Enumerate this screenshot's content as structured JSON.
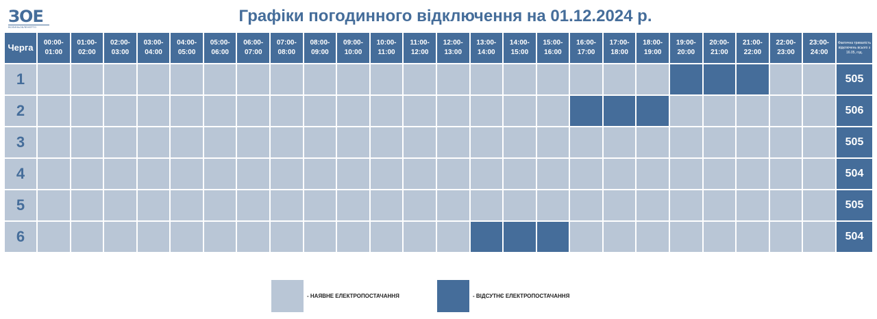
{
  "logo": {
    "mark": "ЗОЕ",
    "text": "ВОЛИНЬОБЛЕНЕРГО"
  },
  "title": "Графіки погодинного відключення на 01.12.2024 р.",
  "header": {
    "queue": "Черга",
    "total": "Фактична тривалість відключень всього з 16.05, год.",
    "hours": [
      "00:00-\n01:00",
      "01:00-\n02:00",
      "02:00-\n03:00",
      "03:00-\n04:00",
      "04:00-\n05:00",
      "05:00-\n06:00",
      "06:00-\n07:00",
      "07:00-\n08:00",
      "08:00-\n09:00",
      "09:00-\n10:00",
      "10:00-\n11:00",
      "11:00-\n12:00",
      "12:00-\n13:00",
      "13:00-\n14:00",
      "14:00-\n15:00",
      "15:00-\n16:00",
      "16:00-\n17:00",
      "17:00-\n18:00",
      "18:00-\n19:00",
      "19:00-\n20:00",
      "20:00-\n21:00",
      "21:00-\n22:00",
      "22:00-\n23:00",
      "23:00-\n24:00"
    ]
  },
  "rows": [
    {
      "queue": "1",
      "off_hours": [
        19,
        20,
        21
      ],
      "total": "505"
    },
    {
      "queue": "2",
      "off_hours": [
        16,
        17,
        18
      ],
      "total": "506"
    },
    {
      "queue": "3",
      "off_hours": [],
      "total": "505"
    },
    {
      "queue": "4",
      "off_hours": [],
      "total": "504"
    },
    {
      "queue": "5",
      "off_hours": [],
      "total": "505"
    },
    {
      "queue": "6",
      "off_hours": [
        13,
        14,
        15
      ],
      "total": "504"
    }
  ],
  "colors": {
    "on": "#b9c6d6",
    "off": "#456d9a"
  },
  "legend": {
    "on": "- НАЯВНЕ ЕЛЕКТРОПОСТАЧАННЯ",
    "off": "- ВІДСУТНЄ ЕЛЕКТРОПОСТАЧАННЯ"
  }
}
